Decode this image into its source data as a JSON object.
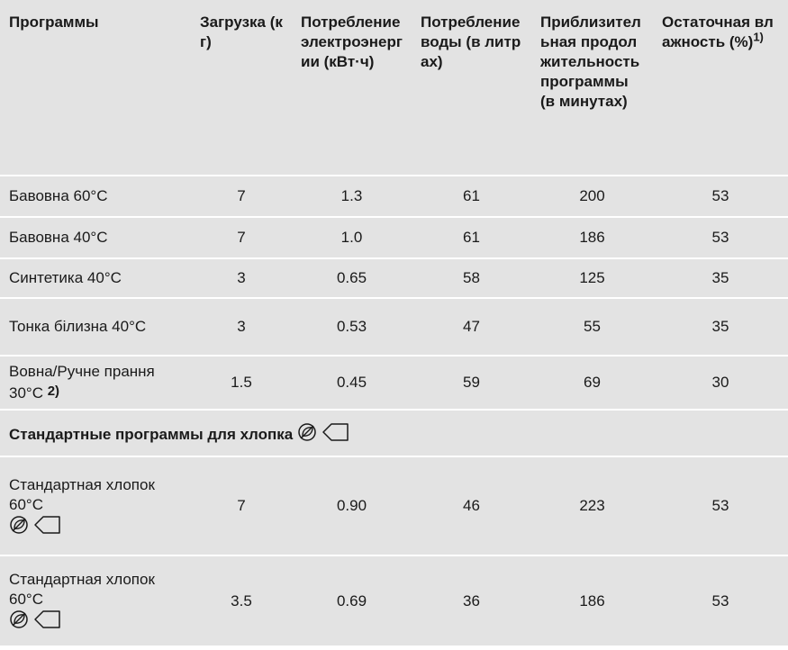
{
  "table": {
    "header": [
      "Программы",
      "Загрузка (кг)",
      "Потребление электроэнергии (кВт·ч)",
      "Потребление воды (в литрах)",
      "Приблизительная продолжительность программы (в минутах)",
      "Остаточная влажность (%)"
    ],
    "header_note": "1)",
    "rows": [
      [
        "Бавовна 60°C",
        "7",
        "1.3",
        "61",
        "200",
        "53"
      ],
      [
        "Бавовна 40°C",
        "7",
        "1.0",
        "61",
        "186",
        "53"
      ],
      [
        "Синтетика 40°C",
        "3",
        "0.65",
        "58",
        "125",
        "35"
      ],
      [
        "Тонка білизна 40°C",
        "3",
        "0.53",
        "47",
        "55",
        "35"
      ],
      [
        "Вовна/Ручне прання 30°C",
        "1.5",
        "0.45",
        "59",
        "69",
        "30"
      ]
    ],
    "row_note": "2)",
    "section": "Стандартные программы для хлопка",
    "section_rows": [
      [
        "Стандартная хлопок 60°C",
        "7",
        "0.90",
        "46",
        "223",
        "53"
      ],
      [
        "Стандартная хлопок 60°C",
        "3.5",
        "0.69",
        "36",
        "186",
        "53"
      ]
    ]
  }
}
